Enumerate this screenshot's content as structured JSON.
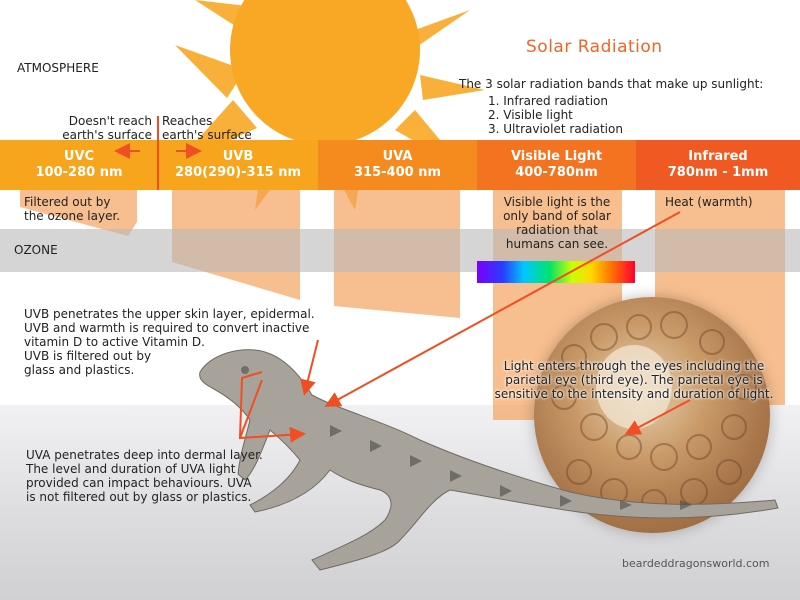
{
  "title": "Solar Radiation",
  "atmosphere_label": "ATMOSPHERE",
  "ozone_label": "OZONE",
  "intro": "The 3 solar radiation bands that make up sunlight:",
  "bands_list": [
    "1. Infrared radiation",
    "2. Visible light",
    "3. Ultraviolet radiation"
  ],
  "doesnt_reach": [
    "Doesn't reach",
    "earth's surface"
  ],
  "reaches": [
    "Reaches",
    "earth's surface"
  ],
  "bands": [
    {
      "name": "UVC",
      "range": "100-280 nm",
      "color": "#f7a51c"
    },
    {
      "name": "UVB",
      "range": "280(290)-315 nm",
      "color": "#f7a51c"
    },
    {
      "name": "UVA",
      "range": "315-400 nm",
      "color": "#f58a1f"
    },
    {
      "name": "Visible Light",
      "range": "400-780nm",
      "color": "#f47320"
    },
    {
      "name": "Infrared",
      "range": "780nm - 1mm",
      "color": "#f05a22"
    }
  ],
  "notes": {
    "uvc": [
      "Filtered out by",
      "the ozone layer."
    ],
    "visible": [
      "Visible light is the",
      "only band of solar",
      "radiation that",
      "humans can see."
    ],
    "infrared": "Heat (warmth)",
    "uvb": [
      "UVB penetrates the upper skin layer, epidermal.",
      "UVB and warmth is required to convert inactive",
      "vitamin D to active Vitamin D.",
      "UVB is filtered out by",
      "glass and plastics."
    ],
    "eye": [
      "Light enters through the eyes including the",
      "parietal eye (third eye). The parietal eye is",
      "sensitive to the intensity and duration of light."
    ],
    "uva": [
      "UVA penetrates deep into dermal layer.",
      "The level and duration of UVA light",
      "provided can impact behaviours. UVA",
      "is not filtered out by glass or plastics."
    ]
  },
  "watermark": "beardeddragonsworld.com",
  "colors": {
    "sun": "#f9a825",
    "accent": "#f26522",
    "arrow": "#f04e23",
    "column": "#f4a460"
  }
}
